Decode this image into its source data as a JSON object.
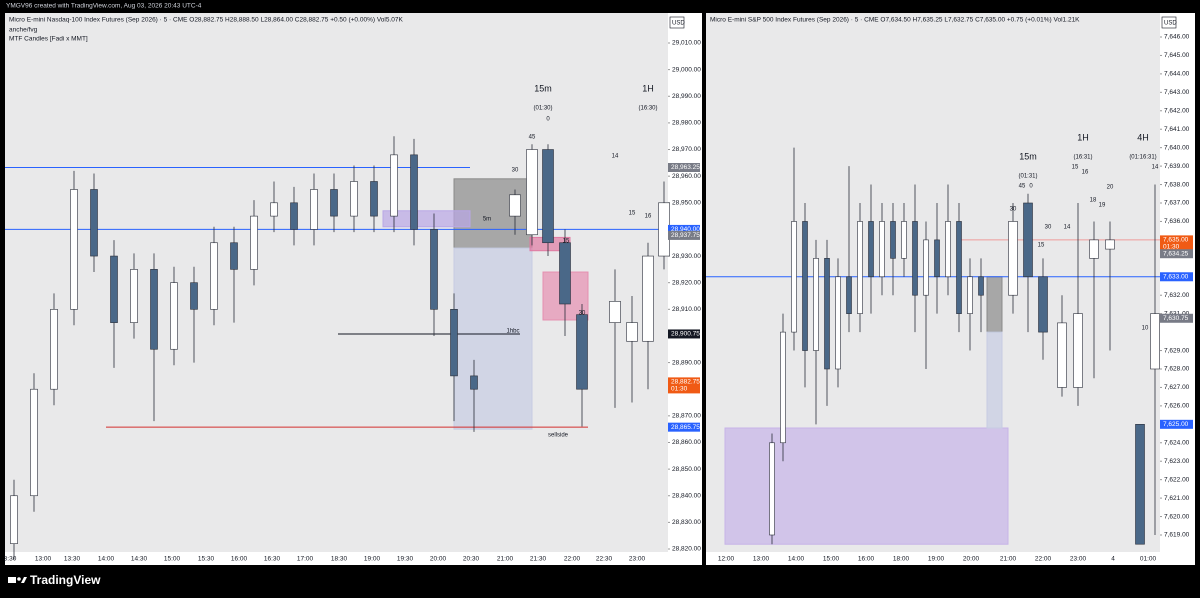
{
  "header": {
    "caption": "YMGV96 created with TradingView.com, Aug 03, 2026 20:43 UTC-4"
  },
  "footer": {
    "brand": "TradingView"
  },
  "panels": [
    {
      "title": "Micro E-mini Nasdaq-100 Index Futures (Sep 2026) · 5 · CME  O28,882.75  H28,888.50  L28,864.00  C28,882.75  +0.50 (+0.00%)  Vol5.07K",
      "indicators": [
        "anche/fvg",
        "MTF Candles [Fadi x MMT]"
      ],
      "currency": "USD",
      "price_ticks": [
        {
          "value": 29010,
          "label": "29,010.00"
        },
        {
          "value": 29000,
          "label": "29,000.00"
        },
        {
          "value": 28990,
          "label": "28,990.00"
        },
        {
          "value": 28980,
          "label": "28,980.00"
        },
        {
          "value": 28970,
          "label": "28,970.00"
        },
        {
          "value": 28960,
          "label": "28,960.00"
        },
        {
          "value": 28950,
          "label": "28,950.00"
        },
        {
          "value": 28930,
          "label": "28,930.00"
        },
        {
          "value": 28920,
          "label": "28,920.00"
        },
        {
          "value": 28910,
          "label": "28,910.00"
        },
        {
          "value": 28890,
          "label": "28,890.00"
        },
        {
          "value": 28870,
          "label": "28,870.00"
        },
        {
          "value": 28860,
          "label": "28,860.00"
        },
        {
          "value": 28850,
          "label": "28,850.00"
        },
        {
          "value": 28840,
          "label": "28,840.00"
        },
        {
          "value": 28830,
          "label": "28,830.00"
        },
        {
          "value": 28820,
          "label": "28,820.00"
        }
      ],
      "time_ticks": [
        "3:30",
        "13:00",
        "13:30",
        "14:00",
        "14:30",
        "15:00",
        "15:30",
        "16:00",
        "16:30",
        "17:00",
        "18:30",
        "19:00",
        "19:30",
        "20:00",
        "20:30",
        "21:00",
        "21:30",
        "22:00",
        "22:30",
        "23:00"
      ],
      "candles": [
        {
          "open": 28822,
          "high": 28846,
          "low": 28816,
          "close": 28840
        },
        {
          "open": 28840,
          "high": 28886,
          "low": 28834,
          "close": 28880
        },
        {
          "open": 28880,
          "high": 28916,
          "low": 28874,
          "close": 28910
        },
        {
          "open": 28910,
          "high": 28962,
          "low": 28904,
          "close": 28955
        },
        {
          "open": 28955,
          "high": 28961,
          "low": 28924,
          "close": 28930
        },
        {
          "open": 28930,
          "high": 28936,
          "low": 28888,
          "close": 28905
        },
        {
          "open": 28905,
          "high": 28931,
          "low": 28899,
          "close": 28925
        },
        {
          "open": 28925,
          "high": 28931,
          "low": 28868,
          "close": 28895
        },
        {
          "open": 28895,
          "high": 28926,
          "low": 28889,
          "close": 28920
        },
        {
          "open": 28920,
          "high": 28926,
          "low": 28890,
          "close": 28910
        },
        {
          "open": 28910,
          "high": 28941,
          "low": 28904,
          "close": 28935
        },
        {
          "open": 28935,
          "high": 28941,
          "low": 28905,
          "close": 28925
        },
        {
          "open": 28925,
          "high": 28951,
          "low": 28919,
          "close": 28945
        },
        {
          "open": 28945,
          "high": 28958,
          "low": 28939,
          "close": 28950
        },
        {
          "open": 28950,
          "high": 28956,
          "low": 28934,
          "close": 28940
        },
        {
          "open": 28940,
          "high": 28961,
          "low": 28934,
          "close": 28955
        },
        {
          "open": 28955,
          "high": 28961,
          "low": 28939,
          "close": 28945
        },
        {
          "open": 28945,
          "high": 28964,
          "low": 28939,
          "close": 28958
        },
        {
          "open": 28958,
          "high": 28964,
          "low": 28939,
          "close": 28945
        },
        {
          "open": 28945,
          "high": 28975,
          "low": 28939,
          "close": 28968
        },
        {
          "open": 28968,
          "high": 28974,
          "low": 28934,
          "close": 28940
        },
        {
          "open": 28940,
          "high": 28946,
          "low": 28900,
          "close": 28910
        },
        {
          "open": 28910,
          "high": 28916,
          "low": 28868,
          "close": 28885
        },
        {
          "open": 28885,
          "high": 28891,
          "low": 28864,
          "close": 28880
        }
      ],
      "htf_candles": [
        {
          "open": 28945,
          "high": 28955,
          "low": 28938,
          "close": 28953
        },
        {
          "open": 28938,
          "high": 28972,
          "low": 28934,
          "close": 28970
        },
        {
          "open": 28970,
          "high": 28972,
          "low": 28930,
          "close": 28935
        },
        {
          "open": 28935,
          "high": 28940,
          "low": 28900,
          "close": 28912
        },
        {
          "open": 28908,
          "high": 28912,
          "low": 28866,
          "close": 28880
        },
        {
          "open": 28905,
          "high": 28925,
          "low": 28873,
          "close": 28913
        },
        {
          "open": 28898,
          "high": 28915,
          "low": 28875,
          "close": 28905
        },
        {
          "open": 28898,
          "high": 28935,
          "low": 28880,
          "close": 28930
        },
        {
          "open": 28930,
          "high": 28958,
          "low": 28925,
          "close": 28950
        }
      ],
      "zones": [
        {
          "top": 28959,
          "bottom": 28933,
          "color": "#8a8a8a"
        },
        {
          "top": 28933,
          "bottom": 28865,
          "color": "#c6cce2"
        },
        {
          "top": 28947,
          "bottom": 28941,
          "color": "#b9a7e6"
        },
        {
          "top": 28937,
          "bottom": 28932,
          "color": "#e07aa2"
        },
        {
          "top": 28924,
          "bottom": 28906,
          "color": "#e58fb0"
        }
      ],
      "levels": [
        {
          "value": 28963.25,
          "color": "#2962ff"
        },
        {
          "value": 28940,
          "color": "#2962ff"
        },
        {
          "value": 28900.75,
          "color": "#131722"
        },
        {
          "value": 28865.75,
          "color": "#d32f2f"
        }
      ],
      "badges": [
        {
          "value": 28963.25,
          "label": "28,963.25",
          "color": "#787b86"
        },
        {
          "value": 28940,
          "label": "28,940.00",
          "color": "#2962ff"
        },
        {
          "value": 28937.75,
          "label": "28,937.75",
          "color": "#787b86"
        },
        {
          "value": 28900.75,
          "label": "28,900.75",
          "color": "#131722"
        },
        {
          "value": 28882.75,
          "label": "28,882.75",
          "color": "#f05a14",
          "sub": "01:30"
        },
        {
          "value": 28865.75,
          "label": "28,865.75",
          "color": "#2962ff"
        }
      ],
      "annotations": [
        "15m",
        "(01:30)",
        "1H",
        "(16:30)",
        "1hbc",
        "sellside",
        "5m",
        "45",
        "0",
        "30",
        "15",
        "30",
        "14",
        "15",
        "16"
      ]
    },
    {
      "title": "Micro E-mini S&P 500 Index Futures (Sep 2026) · 5 · CME  O7,634.50  H7,635.25  L7,632.75  C7,635.00  +0.75 (+0.01%)  Vol1.21K",
      "indicators": [],
      "currency": "USD",
      "price_ticks": [
        {
          "value": 7646,
          "label": "7,646.00"
        },
        {
          "value": 7645,
          "label": "7,645.00"
        },
        {
          "value": 7644,
          "label": "7,644.00"
        },
        {
          "value": 7643,
          "label": "7,643.00"
        },
        {
          "value": 7642,
          "label": "7,642.00"
        },
        {
          "value": 7641,
          "label": "7,641.00"
        },
        {
          "value": 7640,
          "label": "7,640.00"
        },
        {
          "value": 7639,
          "label": "7,639.00"
        },
        {
          "value": 7638,
          "label": "7,638.00"
        },
        {
          "value": 7637,
          "label": "7,637.00"
        },
        {
          "value": 7636,
          "label": "7,636.00"
        },
        {
          "value": 7632,
          "label": "7,632.00"
        },
        {
          "value": 7631,
          "label": "7,631.00"
        },
        {
          "value": 7629,
          "label": "7,629.00"
        },
        {
          "value": 7628,
          "label": "7,628.00"
        },
        {
          "value": 7627,
          "label": "7,627.00"
        },
        {
          "value": 7626,
          "label": "7,626.00"
        },
        {
          "value": 7624,
          "label": "7,624.00"
        },
        {
          "value": 7623,
          "label": "7,623.00"
        },
        {
          "value": 7622,
          "label": "7,622.00"
        },
        {
          "value": 7621,
          "label": "7,621.00"
        },
        {
          "value": 7620,
          "label": "7,620.00"
        },
        {
          "value": 7619,
          "label": "7,619.00"
        }
      ],
      "time_ticks": [
        "12:00",
        "13:00",
        "14:00",
        "15:00",
        "16:00",
        "18:00",
        "19:00",
        "20:00",
        "21:00",
        "22:00",
        "23:00",
        "4",
        "01:00"
      ],
      "candles": [
        {
          "open": 7619,
          "high": 7624.5,
          "low": 7618.5,
          "close": 7624
        },
        {
          "open": 7624,
          "high": 7631,
          "low": 7623,
          "close": 7630
        },
        {
          "open": 7630,
          "high": 7640,
          "low": 7629,
          "close": 7636
        },
        {
          "open": 7636,
          "high": 7637,
          "low": 7627,
          "close": 7629
        },
        {
          "open": 7629,
          "high": 7635,
          "low": 7625,
          "close": 7634
        },
        {
          "open": 7634,
          "high": 7635,
          "low": 7626,
          "close": 7628
        },
        {
          "open": 7628,
          "high": 7634,
          "low": 7627,
          "close": 7633
        },
        {
          "open": 7633,
          "high": 7639,
          "low": 7630,
          "close": 7631
        },
        {
          "open": 7631,
          "high": 7637,
          "low": 7630,
          "close": 7636
        },
        {
          "open": 7636,
          "high": 7638,
          "low": 7631,
          "close": 7633
        },
        {
          "open": 7633,
          "high": 7637,
          "low": 7632,
          "close": 7636
        },
        {
          "open": 7636,
          "high": 7637,
          "low": 7632,
          "close": 7634
        },
        {
          "open": 7634,
          "high": 7637,
          "low": 7633,
          "close": 7636
        },
        {
          "open": 7636,
          "high": 7638,
          "low": 7630,
          "close": 7632
        },
        {
          "open": 7632,
          "high": 7636,
          "low": 7628,
          "close": 7635
        },
        {
          "open": 7635,
          "high": 7637,
          "low": 7631,
          "close": 7633
        },
        {
          "open": 7633,
          "high": 7638,
          "low": 7632,
          "close": 7636
        },
        {
          "open": 7636,
          "high": 7637,
          "low": 7630,
          "close": 7631
        },
        {
          "open": 7631,
          "high": 7634,
          "low": 7629,
          "close": 7633
        },
        {
          "open": 7633,
          "high": 7634,
          "low": 7630,
          "close": 7632
        }
      ],
      "htf_candles": [
        {
          "open": 7632,
          "high": 7637,
          "low": 7631,
          "close": 7636
        },
        {
          "open": 7637,
          "high": 7637.5,
          "low": 7630,
          "close": 7633
        },
        {
          "open": 7633,
          "high": 7634,
          "low": 7628.5,
          "close": 7630
        },
        {
          "open": 7627,
          "high": 7632,
          "low": 7626.5,
          "close": 7630.5
        },
        {
          "open": 7627,
          "high": 7637,
          "low": 7626,
          "close": 7631
        },
        {
          "open": 7634,
          "high": 7636,
          "low": 7627.5,
          "close": 7635
        },
        {
          "open": 7634.5,
          "high": 7636,
          "low": 7629,
          "close": 7635
        },
        {
          "open": 7625,
          "high": 7625,
          "low": 7618.5,
          "close": 7618.5
        },
        {
          "open": 7628,
          "high": 7638,
          "low": 7619,
          "close": 7631
        }
      ],
      "zones": [
        {
          "top": 7624.8,
          "bottom": 7618.5,
          "color": "#c6b3e8"
        },
        {
          "top": 7633,
          "bottom": 7630,
          "color": "#8a8a8a"
        },
        {
          "top": 7630,
          "bottom": 7624.8,
          "color": "#c6cce2"
        }
      ],
      "levels": [
        {
          "value": 7633,
          "color": "#2962ff"
        },
        {
          "value": 7635,
          "color": "#ef9a9a"
        }
      ],
      "badges": [
        {
          "value": 7635,
          "label": "7,635.00",
          "color": "#f05a14",
          "sub": "01:30"
        },
        {
          "value": 7634.25,
          "label": "7,634.25",
          "color": "#787b86"
        },
        {
          "value": 7633,
          "label": "7,633.00",
          "color": "#2962ff"
        },
        {
          "value": 7630.75,
          "label": "7,630.75",
          "color": "#787b86"
        },
        {
          "value": 7625,
          "label": "7,625.00",
          "color": "#2962ff"
        }
      ],
      "annotations": [
        "15m",
        "(01:31)",
        "1H",
        "(16:31)",
        "4H",
        "(01:16:31)",
        "30",
        "45",
        "0",
        "15",
        "30",
        "14",
        "15",
        "16",
        "18",
        "19",
        "20",
        "14",
        "10"
      ]
    }
  ]
}
